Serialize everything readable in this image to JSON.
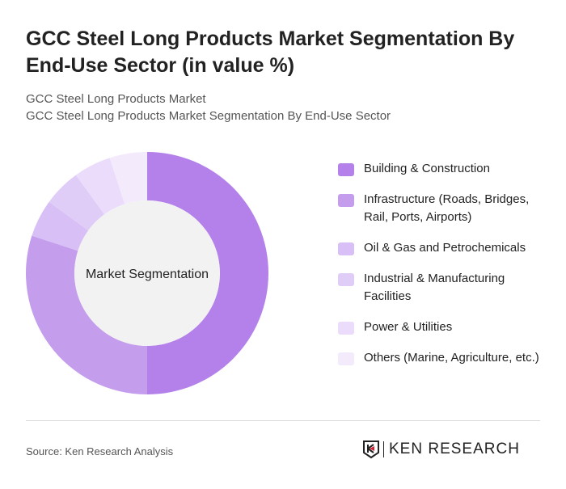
{
  "title": "GCC Steel Long Products Market Segmentation By End-Use Sector (in value %)",
  "subtitle1": "GCC Steel Long Products Market",
  "subtitle2": "GCC Steel Long Products Market Segmentation By End-Use Sector",
  "source": "Source: Ken Research Analysis",
  "logo_text": "KEN RESEARCH",
  "chart_data": {
    "type": "pie",
    "donut": true,
    "center_label": "Market Segmentation",
    "legend_position": "right",
    "categories": [
      "Building & Construction",
      "Infrastructure (Roads, Bridges, Rail, Ports, Airports)",
      "Oil & Gas and Petrochemicals",
      "Industrial & Manufacturing Facilities",
      "Power & Utilities",
      "Others (Marine, Agriculture, etc.)"
    ],
    "values": [
      50,
      30,
      5,
      5,
      5,
      5
    ],
    "colors": [
      "#b381e9",
      "#c59ded",
      "#d8bff5",
      "#e0cdf7",
      "#eadcfa",
      "#f3ebfc"
    ]
  }
}
